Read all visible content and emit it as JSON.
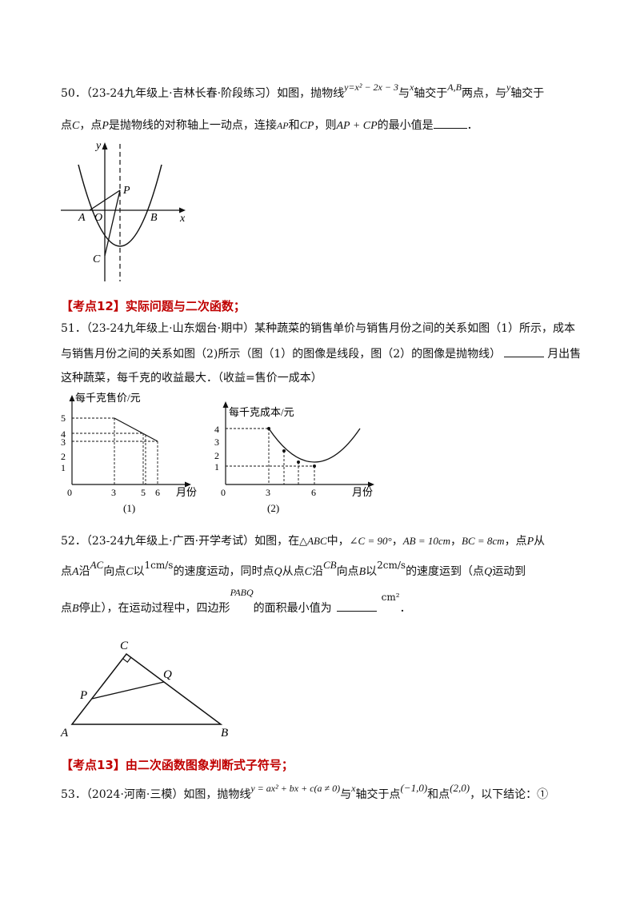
{
  "q50": {
    "number": "50．",
    "source": "（23-24九年级上·吉林长春·阶段练习）",
    "t1": "如图，抛物线",
    "eq": "y=x² − 2x − 3",
    "t2": "与",
    "x": "x",
    "t3": "轴交于",
    "ab": "A,B",
    "t4": "两点，与",
    "y": "y",
    "t5": "轴交于",
    "t6": "点",
    "c": "C",
    "t7": "，点",
    "p": "P",
    "t8": "是抛物线的对称轴上一动点，连接",
    "ap": "AP",
    "t9": "和",
    "cp": "CP",
    "t10": "，则",
    "sum": "AP + CP",
    "t11": "的最小值是",
    "t12": "．",
    "fig": {
      "y": "y",
      "x": "x",
      "P": "P",
      "A": "A",
      "O": "O",
      "B": "B",
      "C": "C"
    }
  },
  "h12": "【考点12】实际问题与二次函数；",
  "q51": {
    "number": "51．",
    "source": "（23-24九年级上·山东烟台·期中）",
    "t1": "某种蔬菜的销售单价与销售月份之间的关系如图（1）所示，成本",
    "t2a": "与销售月份之间的关系如图（2)所示（图（1）的图像是线段，图（2）的图像是抛物线）",
    "t2b": "月出售",
    "t3": "这种蔬菜，每千克的收益最大．（收益=售价一成本）",
    "fig1": {
      "ylabel": "每千克售价/元",
      "xlabel": "月份",
      "yticks": [
        "5",
        "4",
        "3",
        "2",
        "1"
      ],
      "xticks": [
        "0",
        "3",
        "5",
        "6"
      ],
      "caption": "(1)"
    },
    "fig2": {
      "ylabel": "每千克成本/元",
      "xlabel": "月份",
      "yticks": [
        "4",
        "3",
        "2",
        "1"
      ],
      "xticks": [
        "0",
        "3",
        "6"
      ],
      "caption": "(2)"
    }
  },
  "q52": {
    "number": "52．",
    "source": "（23-24九年级上·广西·开学考试）",
    "t1": "如图，在",
    "tri": "△ABC",
    "t2": "中，",
    "angle": "∠C = 90°",
    "ab": "AB = 10cm",
    "bc": "BC = 8cm",
    "t3": "，点",
    "p": "P",
    "t4": "从",
    "t5": "点",
    "a": "A",
    "t6": "沿",
    "ac": "AC",
    "t7": "向点",
    "c": "C",
    "t8": "以",
    "v1": "1cm/s",
    "t9": "的速度运动，同时点",
    "q": "Q",
    "t10": "从点",
    "t11": "沿",
    "cb": "CB",
    "t12": "向点",
    "b": "B",
    "t13": "以",
    "v2": "2cm/s",
    "t14": "的速度运到（点",
    "t15": "运动到",
    "t16": "点",
    "t17": "停止），在运动过程中，四边形",
    "pabq": "PABQ",
    "t18": "的面积最小值为",
    "unit": "cm²",
    "t19": "．",
    "fig": {
      "C": "C",
      "Q": "Q",
      "P": "P",
      "A": "A",
      "B": "B"
    }
  },
  "h13": "【考点13】由二次函数图象判断式子符号；",
  "q53": {
    "number": "53．",
    "source": "（2024·河南·三模）",
    "t1": "如图，抛物线",
    "eq": "y = ax² + bx + c(a ≠ 0)",
    "t2": "与",
    "x": "x",
    "t3": "轴交于点",
    "p1": "(−1,0)",
    "t4": "和点",
    "p2": "(2,0)",
    "t5": "，以下结论：①"
  }
}
